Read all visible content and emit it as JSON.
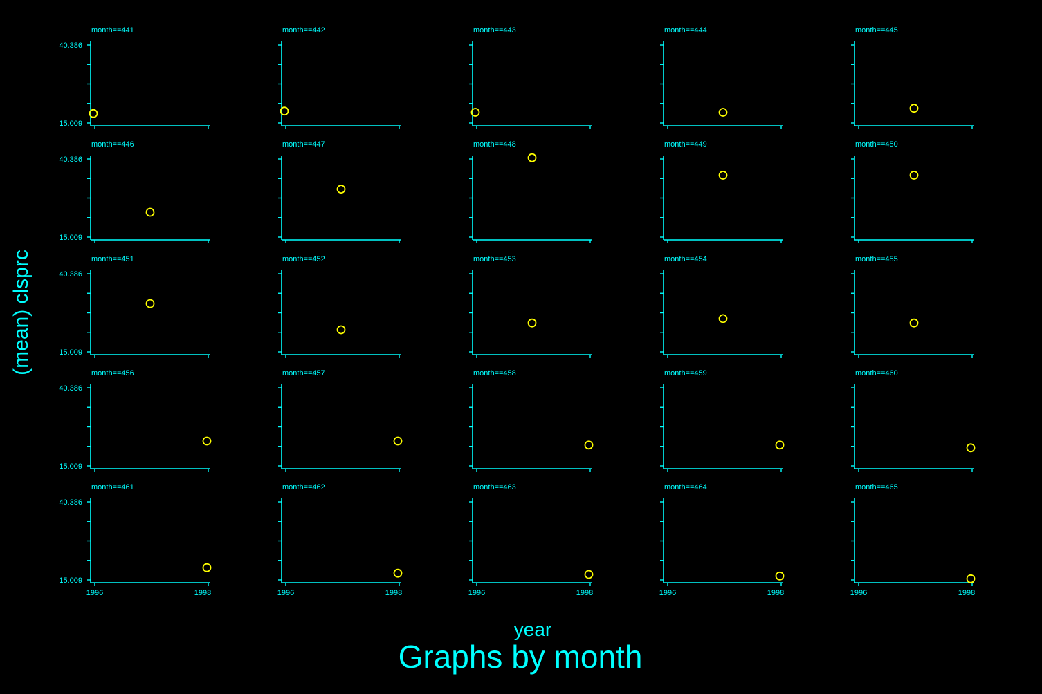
{
  "colors": {
    "background": "#000000",
    "axis": "#00ffff",
    "marker": "#ffff00",
    "text": "#00ffff"
  },
  "chart_data": {
    "type": "scatter",
    "layout": "5x5 small multiples",
    "ylabel": "(mean) clsprc",
    "xlabel": "year",
    "note": "Graphs by month",
    "ylim": [
      15.009,
      40.386
    ],
    "xlim": [
      1996,
      1998
    ],
    "y_ticks": [
      "40.386",
      "15.009"
    ],
    "x_ticks": [
      "1996",
      "1998"
    ],
    "y_minor_ticks": 5,
    "marker": "hollow circle",
    "panels": [
      {
        "title": "month==441",
        "x": 1996,
        "y": 18.1
      },
      {
        "title": "month==442",
        "x": 1996,
        "y": 18.9
      },
      {
        "title": "month==443",
        "x": 1996,
        "y": 18.5
      },
      {
        "title": "month==444",
        "x": 1997,
        "y": 18.5
      },
      {
        "title": "month==445",
        "x": 1997,
        "y": 19.8
      },
      {
        "title": "month==446",
        "x": 1997,
        "y": 23.1
      },
      {
        "title": "month==447",
        "x": 1997,
        "y": 30.6
      },
      {
        "title": "month==448",
        "x": 1997,
        "y": 40.8
      },
      {
        "title": "month==449",
        "x": 1997,
        "y": 35.1
      },
      {
        "title": "month==450",
        "x": 1997,
        "y": 35.1
      },
      {
        "title": "month==451",
        "x": 1997,
        "y": 30.7
      },
      {
        "title": "month==452",
        "x": 1997,
        "y": 22.2
      },
      {
        "title": "month==453",
        "x": 1997,
        "y": 24.4
      },
      {
        "title": "month==454",
        "x": 1997,
        "y": 25.8
      },
      {
        "title": "month==455",
        "x": 1997,
        "y": 24.4
      },
      {
        "title": "month==456",
        "x": 1998,
        "y": 23.1
      },
      {
        "title": "month==457",
        "x": 1998,
        "y": 23.1
      },
      {
        "title": "month==458",
        "x": 1998,
        "y": 21.8
      },
      {
        "title": "month==459",
        "x": 1998,
        "y": 21.8
      },
      {
        "title": "month==460",
        "x": 1998,
        "y": 20.9
      },
      {
        "title": "month==461",
        "x": 1998,
        "y": 19.0
      },
      {
        "title": "month==462",
        "x": 1998,
        "y": 17.2
      },
      {
        "title": "month==463",
        "x": 1998,
        "y": 16.8
      },
      {
        "title": "month==464",
        "x": 1998,
        "y": 16.3
      },
      {
        "title": "month==465",
        "x": 1998,
        "y": 15.4
      }
    ]
  }
}
